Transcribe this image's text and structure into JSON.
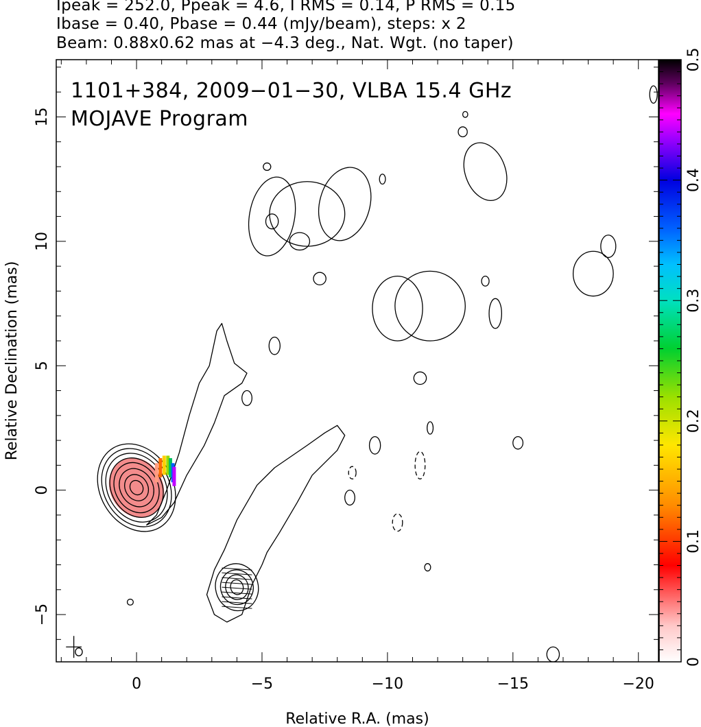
{
  "header": {
    "line1": "Ipeak = 252.0, Ppeak = 4.6, I RMS = 0.14, P RMS = 0.15",
    "line2": "Ibase = 0.40, Pbase = 0.44 (mJy/beam), steps: x 2",
    "line3": "Beam: 0.88x0.62 mas at −4.3 deg., Nat. Wgt. (no taper)"
  },
  "chart_data": {
    "type": "contour",
    "title": "1101+384, 2009−01−30, VLBA 15.4 GHz",
    "subtitle": "MOJAVE Program",
    "xlabel": "Relative R.A. (mas)",
    "ylabel": "Relative Declination (mas)",
    "xlim": [
      3.2,
      -20.8
    ],
    "ylim": [
      -6.9,
      17.3
    ],
    "xticks": [
      0,
      -5,
      -10,
      -15,
      -20
    ],
    "xtick_labels": [
      "0",
      "−5",
      "−10",
      "−15",
      "−20"
    ],
    "yticks": [
      -5,
      0,
      5,
      10,
      15
    ],
    "ytick_labels": [
      "−5",
      "0",
      "5",
      "10",
      "15"
    ],
    "colorbar": {
      "min": 0,
      "max": 0.5,
      "ticks": [
        0,
        0.1,
        0.2,
        0.3,
        0.4,
        0.5
      ],
      "tick_labels": [
        "0",
        "0.1",
        "0.2",
        "0.3",
        "0.4",
        "0.5"
      ]
    },
    "core_components": [
      {
        "x": 0.0,
        "y": 0.1,
        "rx": [
          0.25,
          0.45,
          0.65,
          0.85,
          1.0,
          1.15,
          1.3,
          1.45
        ],
        "ry": [
          0.3,
          0.55,
          0.8,
          1.05,
          1.25,
          1.45,
          1.65,
          1.85
        ],
        "angle": -30
      }
    ],
    "secondary_components": [
      {
        "x": -4.0,
        "y": -3.9,
        "rx": [
          0.25,
          0.45,
          0.65,
          0.85
        ],
        "ry": [
          0.3,
          0.5,
          0.7,
          0.95
        ],
        "angle": -15
      }
    ],
    "islands": [
      {
        "x": -5.4,
        "y": 11.0,
        "rx": 0.9,
        "ry": 1.6,
        "angle": 10
      },
      {
        "x": -6.8,
        "y": 11.1,
        "rx": 1.5,
        "ry": 1.3,
        "angle": 0
      },
      {
        "x": -8.3,
        "y": 11.5,
        "rx": 1.0,
        "ry": 1.5,
        "angle": 15
      },
      {
        "x": -6.5,
        "y": 10.0,
        "rx": 0.4,
        "ry": 0.35,
        "angle": 0
      },
      {
        "x": -5.4,
        "y": 10.8,
        "rx": 0.25,
        "ry": 0.3,
        "angle": 0
      },
      {
        "x": -10.4,
        "y": 7.3,
        "rx": 1.0,
        "ry": 1.3,
        "angle": 0
      },
      {
        "x": -11.7,
        "y": 7.4,
        "rx": 1.4,
        "ry": 1.4,
        "angle": 10
      },
      {
        "x": -13.9,
        "y": 12.8,
        "rx": 0.8,
        "ry": 1.2,
        "angle": -20
      },
      {
        "x": -18.2,
        "y": 8.7,
        "rx": 0.8,
        "ry": 0.9,
        "angle": 0
      },
      {
        "x": -18.8,
        "y": 9.8,
        "rx": 0.3,
        "ry": 0.45,
        "angle": 0
      },
      {
        "x": -14.3,
        "y": 7.1,
        "rx": 0.25,
        "ry": 0.6,
        "angle": 0
      },
      {
        "x": -7.3,
        "y": 8.5,
        "rx": 0.25,
        "ry": 0.25,
        "angle": 0
      },
      {
        "x": -5.5,
        "y": 5.8,
        "rx": 0.22,
        "ry": 0.35,
        "angle": 0
      },
      {
        "x": -4.4,
        "y": 3.7,
        "rx": 0.2,
        "ry": 0.3,
        "angle": 0
      },
      {
        "x": -11.3,
        "y": 4.5,
        "rx": 0.25,
        "ry": 0.25,
        "angle": 0
      },
      {
        "x": -9.5,
        "y": 1.8,
        "rx": 0.22,
        "ry": 0.35,
        "angle": 0
      },
      {
        "x": -8.5,
        "y": -0.3,
        "rx": 0.2,
        "ry": 0.3,
        "angle": 0
      },
      {
        "x": -13.9,
        "y": 8.4,
        "rx": 0.15,
        "ry": 0.2,
        "angle": 0
      },
      {
        "x": -13.0,
        "y": 14.4,
        "rx": 0.18,
        "ry": 0.2,
        "angle": 0
      },
      {
        "x": -9.8,
        "y": 12.5,
        "rx": 0.12,
        "ry": 0.2,
        "angle": 0
      },
      {
        "x": -5.2,
        "y": 13.0,
        "rx": 0.15,
        "ry": 0.15,
        "angle": 0
      },
      {
        "x": -15.2,
        "y": 1.9,
        "rx": 0.2,
        "ry": 0.25,
        "angle": 0
      },
      {
        "x": -11.7,
        "y": 2.5,
        "rx": 0.12,
        "ry": 0.25,
        "angle": 0
      },
      {
        "x": -11.6,
        "y": -3.1,
        "rx": 0.12,
        "ry": 0.15,
        "angle": 0
      },
      {
        "x": -16.6,
        "y": -6.6,
        "rx": 0.25,
        "ry": 0.3,
        "angle": 0
      },
      {
        "x": -20.6,
        "y": 15.9,
        "rx": 0.15,
        "ry": 0.35,
        "angle": 0
      },
      {
        "x": 0.25,
        "y": -4.5,
        "rx": 0.12,
        "ry": 0.12,
        "angle": 0
      },
      {
        "x": 2.3,
        "y": -6.5,
        "rx": 0.14,
        "ry": 0.16,
        "angle": 0
      },
      {
        "x": -13.1,
        "y": 15.1,
        "rx": 0.1,
        "ry": 0.12,
        "angle": 0
      }
    ],
    "negative_contours": [
      {
        "x": -11.3,
        "y": 1.0,
        "rx": 0.2,
        "ry": 0.55,
        "angle": 0
      },
      {
        "x": -10.4,
        "y": -1.3,
        "rx": 0.2,
        "ry": 0.35,
        "angle": 0
      },
      {
        "x": -8.6,
        "y": 0.7,
        "rx": 0.15,
        "ry": 0.25,
        "angle": 0
      }
    ],
    "jets": [
      [
        [
          -0.4,
          -1.4
        ],
        [
          -0.8,
          -1.0
        ],
        [
          -1.2,
          0.0
        ],
        [
          -1.7,
          1.5
        ],
        [
          -2.1,
          3.0
        ],
        [
          -2.5,
          4.3
        ],
        [
          -2.9,
          5.0
        ],
        [
          -3.2,
          6.4
        ],
        [
          -3.4,
          6.7
        ],
        [
          -3.6,
          6.0
        ],
        [
          -3.9,
          5.1
        ],
        [
          -4.4,
          4.7
        ],
        [
          -4.2,
          4.3
        ],
        [
          -3.5,
          3.8
        ],
        [
          -3.1,
          2.7
        ],
        [
          -2.7,
          1.8
        ],
        [
          -2.0,
          0.6
        ],
        [
          -1.5,
          -0.5
        ],
        [
          -1.0,
          -1.1
        ]
      ],
      [
        [
          -3.1,
          -5.0
        ],
        [
          -3.6,
          -5.3
        ],
        [
          -4.2,
          -5.0
        ],
        [
          -4.6,
          -3.8
        ],
        [
          -5.0,
          -3.0
        ],
        [
          -5.2,
          -2.5
        ],
        [
          -5.7,
          -1.7
        ],
        [
          -6.4,
          -0.5
        ],
        [
          -7.0,
          0.6
        ],
        [
          -7.6,
          1.2
        ],
        [
          -8.0,
          1.6
        ],
        [
          -8.3,
          2.2
        ],
        [
          -8.0,
          2.6
        ],
        [
          -7.5,
          2.3
        ],
        [
          -6.8,
          1.8
        ],
        [
          -5.5,
          0.9
        ],
        [
          -4.8,
          0.2
        ],
        [
          -4.0,
          -1.2
        ],
        [
          -3.5,
          -2.4
        ],
        [
          -3.1,
          -3.2
        ],
        [
          -2.8,
          -4.2
        ]
      ]
    ],
    "polarization_vectors": [
      {
        "x": -0.8,
        "y": 0.7,
        "color": "#ff9c80"
      },
      {
        "x": -0.95,
        "y": 0.9,
        "color": "#ff6a00"
      },
      {
        "x": -1.1,
        "y": 1.0,
        "color": "#ffd000"
      },
      {
        "x": -1.25,
        "y": 1.0,
        "color": "#9ad800"
      },
      {
        "x": -1.35,
        "y": 0.9,
        "color": "#00c060"
      },
      {
        "x": -1.45,
        "y": 0.7,
        "color": "#0060ff"
      },
      {
        "x": -1.5,
        "y": 0.55,
        "color": "#c000ff"
      }
    ],
    "beam": {
      "x": 2.5,
      "y": -6.3,
      "major": 0.88,
      "minor": 0.62,
      "angle": -4.3
    },
    "grid": false
  }
}
